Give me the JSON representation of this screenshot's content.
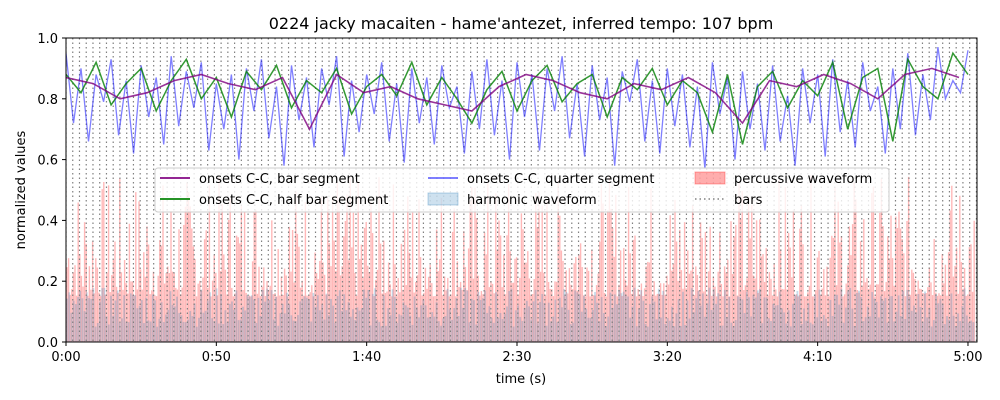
{
  "chart_data": {
    "type": "line",
    "title": "0224 jacky macaiten - hame'antezet, inferred tempo: 107 bpm",
    "xlabel": "time (s)",
    "ylabel": "normalized values",
    "xlim": [
      0,
      303
    ],
    "ylim": [
      0,
      1.0
    ],
    "x_ticks": [
      {
        "value": 0,
        "label": "0:00"
      },
      {
        "value": 50,
        "label": "0:50"
      },
      {
        "value": 100,
        "label": "1:40"
      },
      {
        "value": 150,
        "label": "2:30"
      },
      {
        "value": 200,
        "label": "3:20"
      },
      {
        "value": 250,
        "label": "4:10"
      },
      {
        "value": 300,
        "label": "5:00"
      }
    ],
    "y_ticks": [
      {
        "value": 0.0,
        "label": "0.0"
      },
      {
        "value": 0.2,
        "label": "0.2"
      },
      {
        "value": 0.4,
        "label": "0.4"
      },
      {
        "value": 0.6,
        "label": "0.6"
      },
      {
        "value": 0.8,
        "label": "0.8"
      },
      {
        "value": 1.0,
        "label": "1.0"
      }
    ],
    "grid": false,
    "legend_position": "center",
    "legend": [
      {
        "label": "onsets C-C, bar segment",
        "type": "line",
        "color": "#800080"
      },
      {
        "label": "onsets C-C, half bar segment",
        "type": "line",
        "color": "#008000"
      },
      {
        "label": "onsets C-C, quarter segment",
        "type": "line",
        "color": "#0000ff"
      },
      {
        "label": "harmonic waveform",
        "type": "fill",
        "color": "#1f77b4"
      },
      {
        "label": "percussive waveform",
        "type": "fill",
        "color": "#ff0000"
      },
      {
        "label": "bars",
        "type": "dotted",
        "color": "#808080"
      }
    ],
    "bar_interval_s": 2.243,
    "series": [
      {
        "name": "onsets C-C, bar segment",
        "color": "#800080",
        "x": [
          0,
          9,
          18,
          27,
          36,
          45,
          54,
          63,
          72,
          81,
          90,
          99,
          108,
          117,
          126,
          135,
          144,
          153,
          162,
          171,
          180,
          189,
          198,
          207,
          216,
          225,
          234,
          243,
          252,
          261,
          270,
          279,
          288,
          297
        ],
        "values": [
          0.87,
          0.85,
          0.8,
          0.82,
          0.86,
          0.88,
          0.85,
          0.83,
          0.87,
          0.7,
          0.88,
          0.82,
          0.84,
          0.8,
          0.78,
          0.76,
          0.84,
          0.88,
          0.86,
          0.82,
          0.8,
          0.85,
          0.83,
          0.87,
          0.82,
          0.72,
          0.86,
          0.84,
          0.88,
          0.85,
          0.8,
          0.88,
          0.9,
          0.87
        ]
      },
      {
        "name": "onsets C-C, half bar segment",
        "color": "#008000",
        "x": [
          0,
          5,
          10,
          15,
          20,
          25,
          30,
          35,
          40,
          45,
          50,
          55,
          60,
          65,
          70,
          75,
          80,
          85,
          90,
          95,
          100,
          105,
          110,
          115,
          120,
          125,
          130,
          135,
          140,
          145,
          150,
          155,
          160,
          165,
          170,
          175,
          180,
          185,
          190,
          195,
          200,
          205,
          210,
          215,
          220,
          225,
          230,
          235,
          240,
          245,
          250,
          255,
          260,
          265,
          270,
          275,
          280,
          285,
          290,
          295,
          300
        ],
        "values": [
          0.88,
          0.82,
          0.92,
          0.78,
          0.85,
          0.9,
          0.76,
          0.86,
          0.93,
          0.8,
          0.87,
          0.74,
          0.89,
          0.83,
          0.91,
          0.77,
          0.86,
          0.82,
          0.9,
          0.75,
          0.84,
          0.88,
          0.81,
          0.92,
          0.78,
          0.87,
          0.8,
          0.72,
          0.83,
          0.89,
          0.76,
          0.86,
          0.91,
          0.79,
          0.85,
          0.88,
          0.74,
          0.87,
          0.83,
          0.9,
          0.78,
          0.86,
          0.82,
          0.69,
          0.88,
          0.65,
          0.84,
          0.89,
          0.77,
          0.86,
          0.81,
          0.92,
          0.7,
          0.87,
          0.9,
          0.66,
          0.93,
          0.84,
          0.8,
          0.95,
          0.88
        ]
      },
      {
        "name": "onsets C-C, quarter segment",
        "color": "#0000ff",
        "x": [
          0,
          2.5,
          5,
          7.5,
          10,
          12.5,
          15,
          17.5,
          20,
          22.5,
          25,
          27.5,
          30,
          32.5,
          35,
          37.5,
          40,
          42.5,
          45,
          47.5,
          50,
          52.5,
          55,
          57.5,
          60,
          62.5,
          65,
          67.5,
          70,
          72.5,
          75,
          77.5,
          80,
          82.5,
          85,
          87.5,
          90,
          92.5,
          95,
          97.5,
          100,
          102.5,
          105,
          107.5,
          110,
          112.5,
          115,
          117.5,
          120,
          122.5,
          125,
          127.5,
          130,
          132.5,
          135,
          137.5,
          140,
          142.5,
          145,
          147.5,
          150,
          152.5,
          155,
          157.5,
          160,
          162.5,
          165,
          167.5,
          170,
          172.5,
          175,
          177.5,
          180,
          182.5,
          185,
          187.5,
          190,
          192.5,
          195,
          197.5,
          200,
          202.5,
          205,
          207.5,
          210,
          212.5,
          215,
          217.5,
          220,
          222.5,
          225,
          227.5,
          230,
          232.5,
          235,
          237.5,
          240,
          242.5,
          245,
          247.5,
          250,
          252.5,
          255,
          257.5,
          260,
          262.5,
          265,
          267.5,
          270,
          272.5,
          275,
          277.5,
          280,
          282.5,
          285,
          287.5,
          290,
          292.5,
          295,
          297.5,
          300
        ],
        "values": [
          0.95,
          0.72,
          0.9,
          0.66,
          0.88,
          0.79,
          0.93,
          0.68,
          0.86,
          0.62,
          0.91,
          0.74,
          0.87,
          0.65,
          0.94,
          0.71,
          0.89,
          0.77,
          0.92,
          0.63,
          0.85,
          0.7,
          0.88,
          0.6,
          0.9,
          0.76,
          0.93,
          0.67,
          0.84,
          0.58,
          0.91,
          0.73,
          0.87,
          0.64,
          0.9,
          0.78,
          0.94,
          0.61,
          0.86,
          0.69,
          0.88,
          0.75,
          0.92,
          0.66,
          0.85,
          0.59,
          0.9,
          0.72,
          0.87,
          0.65,
          0.91,
          0.77,
          0.84,
          0.62,
          0.89,
          0.7,
          0.93,
          0.68,
          0.86,
          0.6,
          0.92,
          0.74,
          0.88,
          0.63,
          0.9,
          0.76,
          0.94,
          0.67,
          0.85,
          0.61,
          0.91,
          0.73,
          0.87,
          0.58,
          0.89,
          0.79,
          0.93,
          0.66,
          0.86,
          0.62,
          0.9,
          0.71,
          0.88,
          0.64,
          0.84,
          0.57,
          0.92,
          0.75,
          0.87,
          0.6,
          0.89,
          0.7,
          0.85,
          0.63,
          0.91,
          0.66,
          0.81,
          0.58,
          0.9,
          0.72,
          0.88,
          0.61,
          0.93,
          0.69,
          0.86,
          0.64,
          0.92,
          0.76,
          0.84,
          0.62,
          0.9,
          0.7,
          0.95,
          0.68,
          0.88,
          0.73,
          0.97,
          0.8,
          0.86,
          0.82,
          0.96
        ]
      }
    ]
  }
}
